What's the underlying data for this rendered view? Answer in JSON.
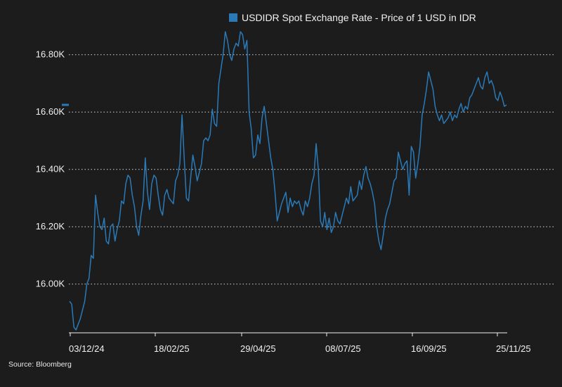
{
  "chart_data": {
    "type": "line",
    "title": "",
    "xlabel": "",
    "ylabel": "",
    "legend": {
      "label": "USDIDR Spot Exchange Rate - Price of 1 USD in IDR",
      "placement": "top"
    },
    "source": "Source: Bloomberg",
    "ylim": [
      15830,
      16900
    ],
    "grid": "horizontal dotted",
    "y_ticks": [
      16000,
      16200,
      16400,
      16600,
      16800
    ],
    "y_tick_labels": [
      "16.00K",
      "16.20K",
      "16.40K",
      "16.60K",
      "16.80K"
    ],
    "x_tick_labels": [
      "03/12/24",
      "18/02/25",
      "29/04/25",
      "08/07/25",
      "16/09/25",
      "25/11/25"
    ],
    "last_value": 16625,
    "series": [
      {
        "name": "USDIDR Spot Exchange Rate - Price of 1 USD in IDR",
        "color": "#2a7ab8",
        "values": [
          15940,
          15930,
          15850,
          15840,
          15860,
          15880,
          15910,
          15940,
          16000,
          16020,
          16100,
          16090,
          16310,
          16250,
          16200,
          16190,
          16230,
          16150,
          16140,
          16200,
          16210,
          16150,
          16190,
          16220,
          16290,
          16280,
          16350,
          16380,
          16370,
          16310,
          16270,
          16200,
          16170,
          16240,
          16290,
          16440,
          16320,
          16260,
          16350,
          16380,
          16370,
          16310,
          16260,
          16240,
          16310,
          16330,
          16300,
          16290,
          16280,
          16360,
          16380,
          16420,
          16590,
          16440,
          16300,
          16290,
          16370,
          16450,
          16410,
          16360,
          16390,
          16420,
          16500,
          16510,
          16500,
          16520,
          16610,
          16560,
          16550,
          16700,
          16750,
          16800,
          16880,
          16850,
          16800,
          16780,
          16820,
          16840,
          16830,
          16880,
          16870,
          16820,
          16850,
          16600,
          16540,
          16440,
          16450,
          16520,
          16490,
          16580,
          16620,
          16560,
          16500,
          16440,
          16400,
          16320,
          16220,
          16250,
          16280,
          16300,
          16320,
          16250,
          16300,
          16270,
          16290,
          16280,
          16290,
          16260,
          16240,
          16290,
          16270,
          16300,
          16350,
          16380,
          16490,
          16400,
          16220,
          16200,
          16250,
          16190,
          16230,
          16180,
          16200,
          16250,
          16220,
          16210,
          16240,
          16270,
          16300,
          16280,
          16340,
          16290,
          16300,
          16310,
          16360,
          16330,
          16380,
          16410,
          16370,
          16350,
          16320,
          16280,
          16200,
          16150,
          16120,
          16170,
          16230,
          16260,
          16280,
          16320,
          16360,
          16370,
          16460,
          16430,
          16400,
          16420,
          16430,
          16310,
          16480,
          16460,
          16370,
          16420,
          16480,
          16590,
          16630,
          16680,
          16740,
          16710,
          16680,
          16620,
          16590,
          16570,
          16590,
          16560,
          16570,
          16580,
          16600,
          16570,
          16590,
          16580,
          16610,
          16630,
          16600,
          16620,
          16610,
          16650,
          16660,
          16680,
          16700,
          16720,
          16690,
          16680,
          16720,
          16740,
          16700,
          16710,
          16690,
          16650,
          16640,
          16670,
          16650,
          16620,
          16625
        ]
      }
    ]
  }
}
